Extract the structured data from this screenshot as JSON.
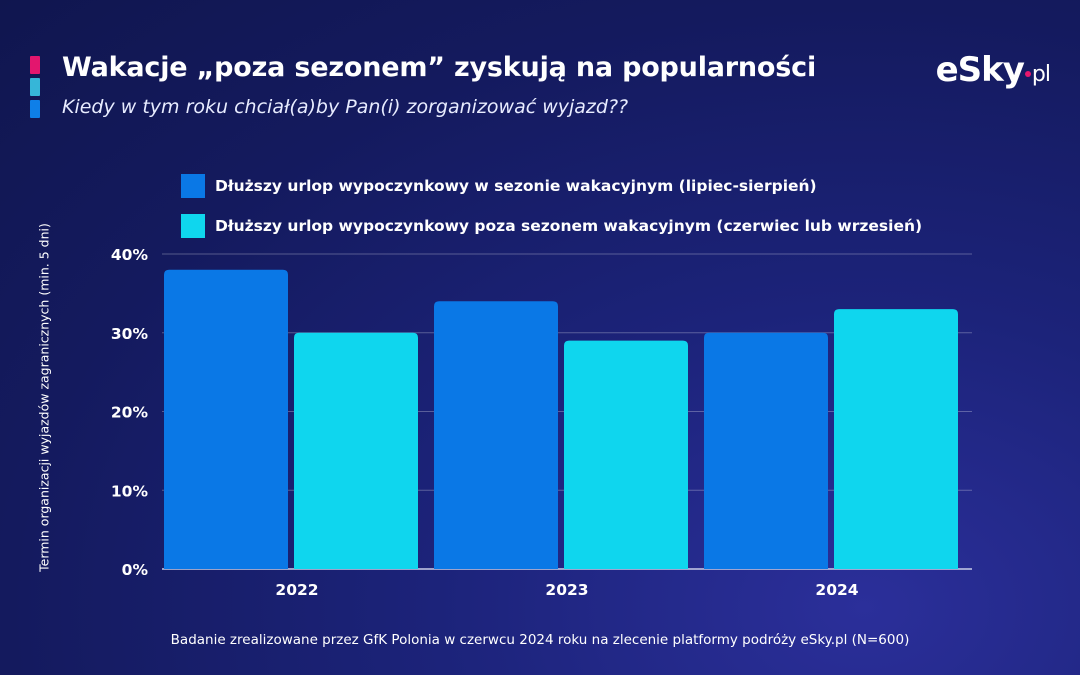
{
  "header": {
    "title": "Wakacje „poza sezonem” zyskują na popularności",
    "subtitle": "Kiedy w tym roku chciał(a)by Pan(i) zorganizować wyjazd??",
    "accent_colors": [
      "#e3166e",
      "#36b6d8",
      "#0e7fe8"
    ]
  },
  "logo": {
    "brand": "Sky",
    "tld": "pl",
    "letter": "e"
  },
  "footer": {
    "note": "Badanie zrealizowane przez GfK Polonia w czerwcu 2024 roku na zlecenie platformy podróży eSky.pl (N=600)"
  },
  "chart_data": {
    "type": "bar",
    "title": "Wakacje „poza sezonem” zyskują na popularności",
    "subtitle": "Kiedy w tym roku chciał(a)by Pan(i) zorganizować wyjazd??",
    "xlabel": "",
    "ylabel": "Termin organizacji wyjazdów zagranicznych (min. 5 dni)",
    "categories": [
      "2022",
      "2023",
      "2024"
    ],
    "ylim": [
      0,
      40
    ],
    "yticks": [
      0,
      10,
      20,
      30,
      40
    ],
    "ytick_labels": [
      "0%",
      "10%",
      "20%",
      "30%",
      "40%"
    ],
    "grid": true,
    "legend_position": "top",
    "series": [
      {
        "name": "Dłuższy urlop wypoczynkowy w sezonie wakacyjnym (lipiec-sierpień)",
        "color": "#0a78e6",
        "values": [
          38,
          34,
          30
        ]
      },
      {
        "name": "Dłuższy urlop wypoczynkowy poza sezonem wakacyjnym (czerwiec lub wrzesień)",
        "color": "#0fd6ee",
        "values": [
          30,
          29,
          33
        ]
      }
    ]
  }
}
